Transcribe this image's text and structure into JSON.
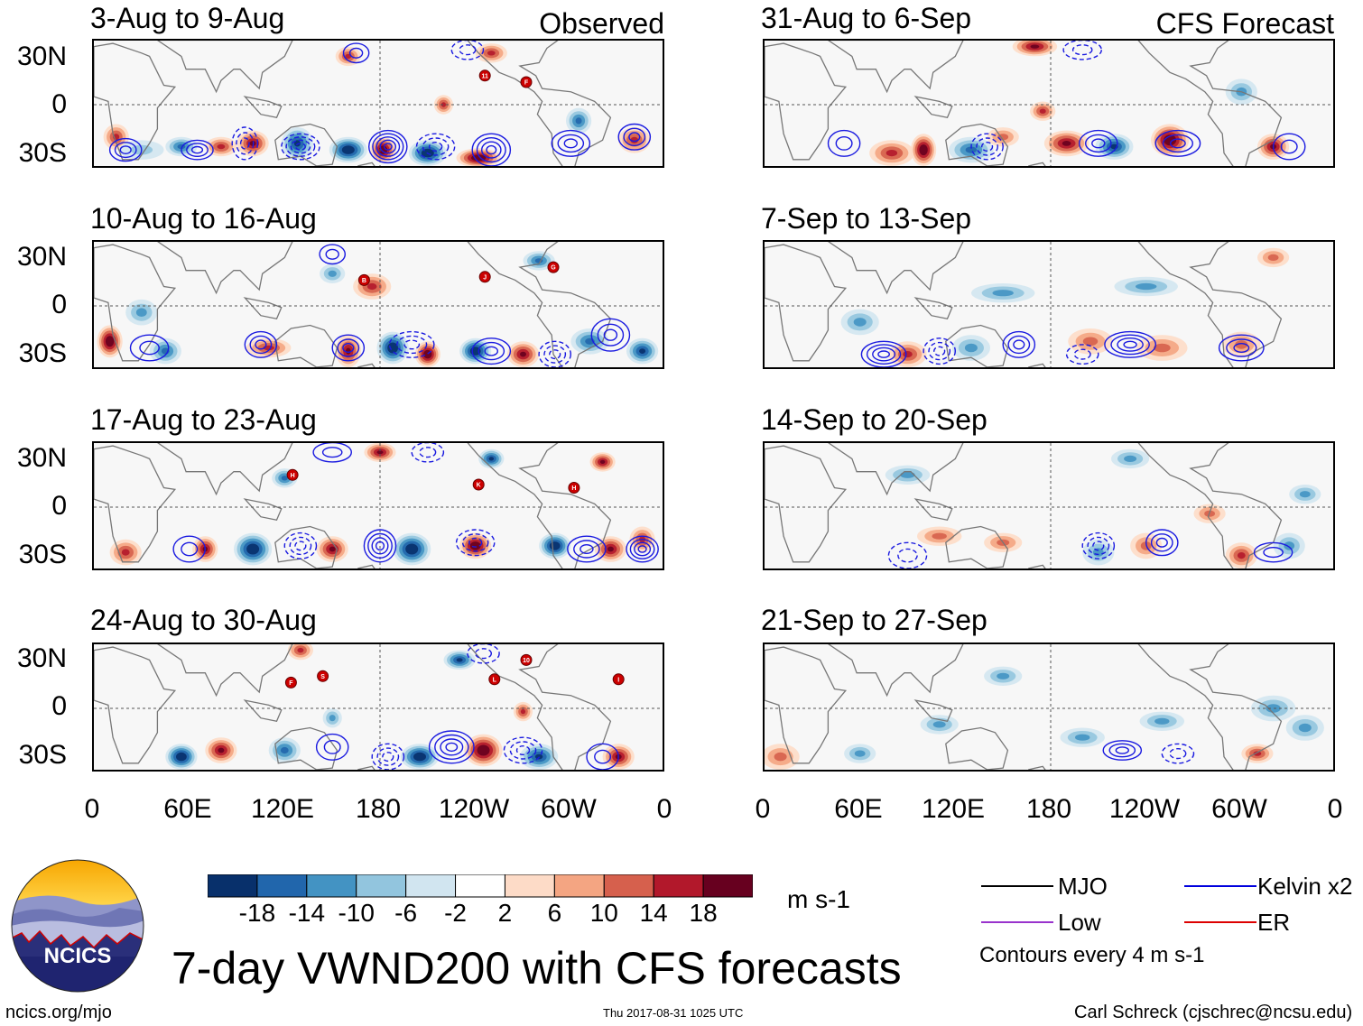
{
  "main_title": "7-day VWND200 with CFS forecasts",
  "footer": {
    "url": "ncics.org/mjo",
    "timestamp": "Thu 2017-08-31 1025 UTC",
    "author": "Carl Schreck (cjschrec@ncsu.edu)"
  },
  "logo": {
    "text": "NCICS"
  },
  "colorbar": {
    "units": "m s-1",
    "tick_labels": [
      "-18",
      "-14",
      "-10",
      "-6",
      "-2",
      "2",
      "6",
      "10",
      "14",
      "18"
    ],
    "colors": [
      "#08306b",
      "#2166ac",
      "#4393c3",
      "#92c5de",
      "#d1e5f0",
      "#ffffff",
      "#fddbc7",
      "#f4a582",
      "#d6604d",
      "#b2182b",
      "#67001f"
    ]
  },
  "legend": {
    "items": [
      {
        "label": "MJO",
        "color": "#000000"
      },
      {
        "label": "Kelvin x2",
        "color": "#0000dd"
      },
      {
        "label": "Low",
        "color": "#9933cc"
      },
      {
        "label": "ER",
        "color": "#dd0000"
      }
    ],
    "note": "Contours every 4 m s-1"
  },
  "chart_data": {
    "type": "heatmap",
    "variable": "VWND200",
    "units": "m s-1",
    "contour_interval": 4,
    "y_tick_labels": [
      "30N",
      "0",
      "30S"
    ],
    "x_tick_labels": [
      "0",
      "60E",
      "120E",
      "180",
      "120W",
      "60W",
      "0"
    ],
    "observed_label": "Observed",
    "forecast_label": "CFS Forecast",
    "observed_panels": [
      {
        "title": "3-Aug to 9-Aug",
        "storms": [
          "11",
          "F"
        ]
      },
      {
        "title": "10-Aug to 16-Aug",
        "storms": [
          "B",
          "J",
          "G"
        ]
      },
      {
        "title": "17-Aug to 23-Aug",
        "storms": [
          "H",
          "K",
          "H"
        ]
      },
      {
        "title": "24-Aug to 30-Aug",
        "storms": [
          "F",
          "S",
          "L",
          "10",
          "I"
        ]
      }
    ],
    "forecast_panels": [
      {
        "title": "31-Aug to 6-Sep"
      },
      {
        "title": "7-Sep to 13-Sep"
      },
      {
        "title": "14-Sep to 20-Sep"
      },
      {
        "title": "21-Sep to 27-Sep"
      }
    ]
  }
}
